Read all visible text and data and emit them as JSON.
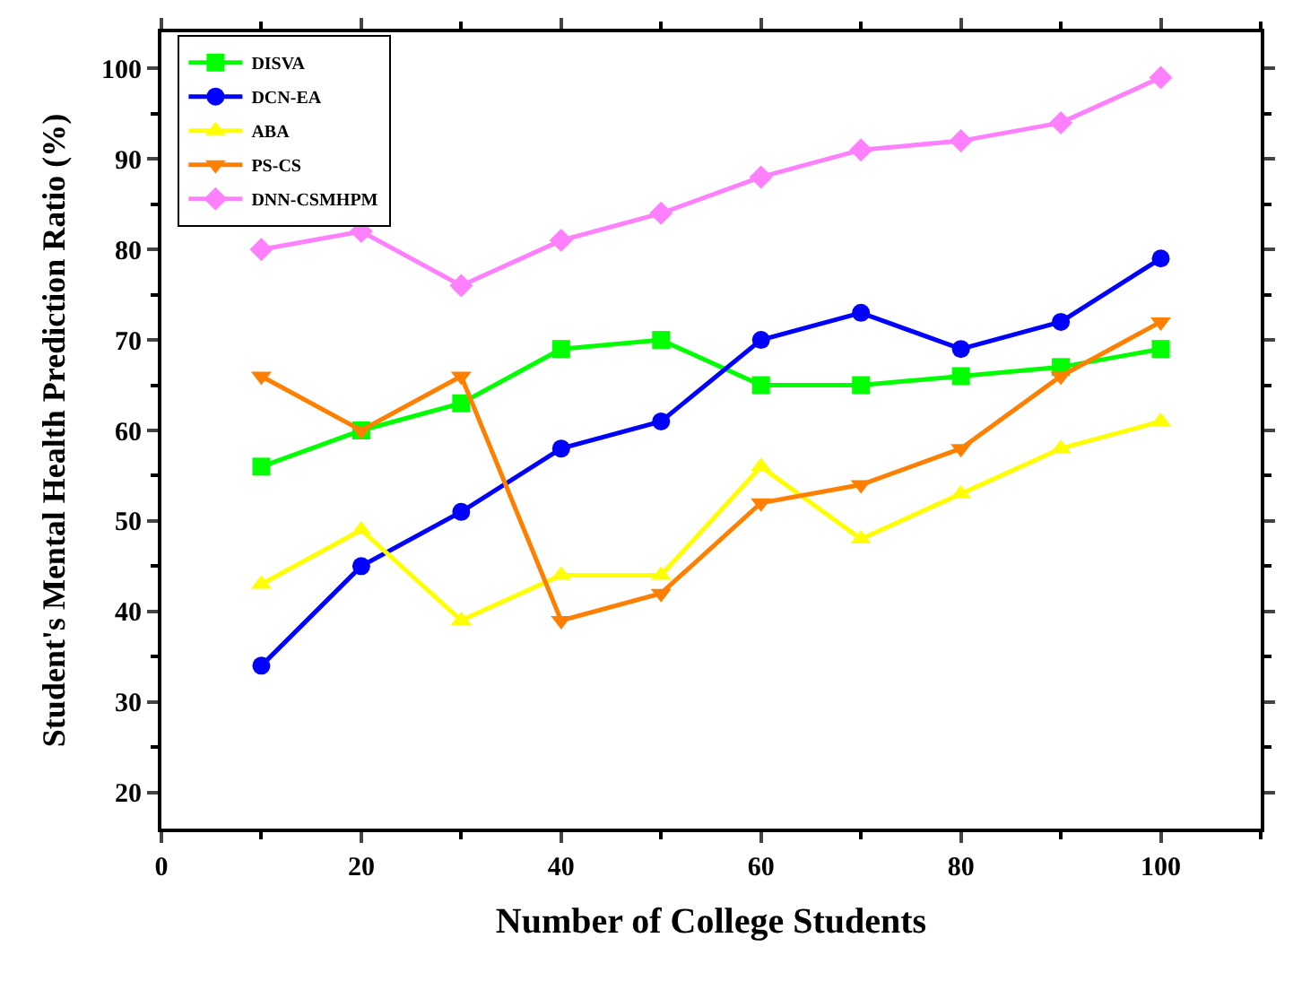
{
  "chart_data": {
    "type": "line",
    "xlabel": "Number of College Students",
    "ylabel": "Student's Mental Health Prediction Ratio (%)",
    "x": [
      10,
      20,
      30,
      40,
      50,
      60,
      70,
      80,
      90,
      100
    ],
    "series": [
      {
        "name": "DISVA",
        "color": "#00ff00",
        "marker": "square",
        "values": [
          56,
          60,
          63,
          69,
          70,
          65,
          65,
          66,
          67,
          69
        ]
      },
      {
        "name": "DCN-EA",
        "color": "#0000ff",
        "marker": "circle",
        "values": [
          34,
          45,
          51,
          58,
          61,
          70,
          73,
          69,
          72,
          79
        ]
      },
      {
        "name": "ABA",
        "color": "#ffff00",
        "marker": "triangle",
        "values": [
          43,
          49,
          39,
          44,
          44,
          56,
          48,
          53,
          58,
          61
        ]
      },
      {
        "name": "PS-CS",
        "color": "#ff8000",
        "marker": "triangle-down",
        "values": [
          66,
          60,
          66,
          39,
          42,
          52,
          54,
          58,
          66,
          72
        ]
      },
      {
        "name": "DNN-CSMHPM",
        "color": "#ff80ff",
        "marker": "diamond",
        "values": [
          80,
          82,
          76,
          81,
          84,
          88,
          91,
          92,
          94,
          99
        ]
      }
    ],
    "xlim": [
      0,
      110
    ],
    "xticks": [
      0,
      20,
      40,
      60,
      80,
      100
    ],
    "ylim": [
      16,
      104
    ],
    "yticks": [
      20,
      30,
      40,
      50,
      60,
      70,
      80,
      90,
      100
    ],
    "legend": "top left",
    "line_style": "solid"
  }
}
